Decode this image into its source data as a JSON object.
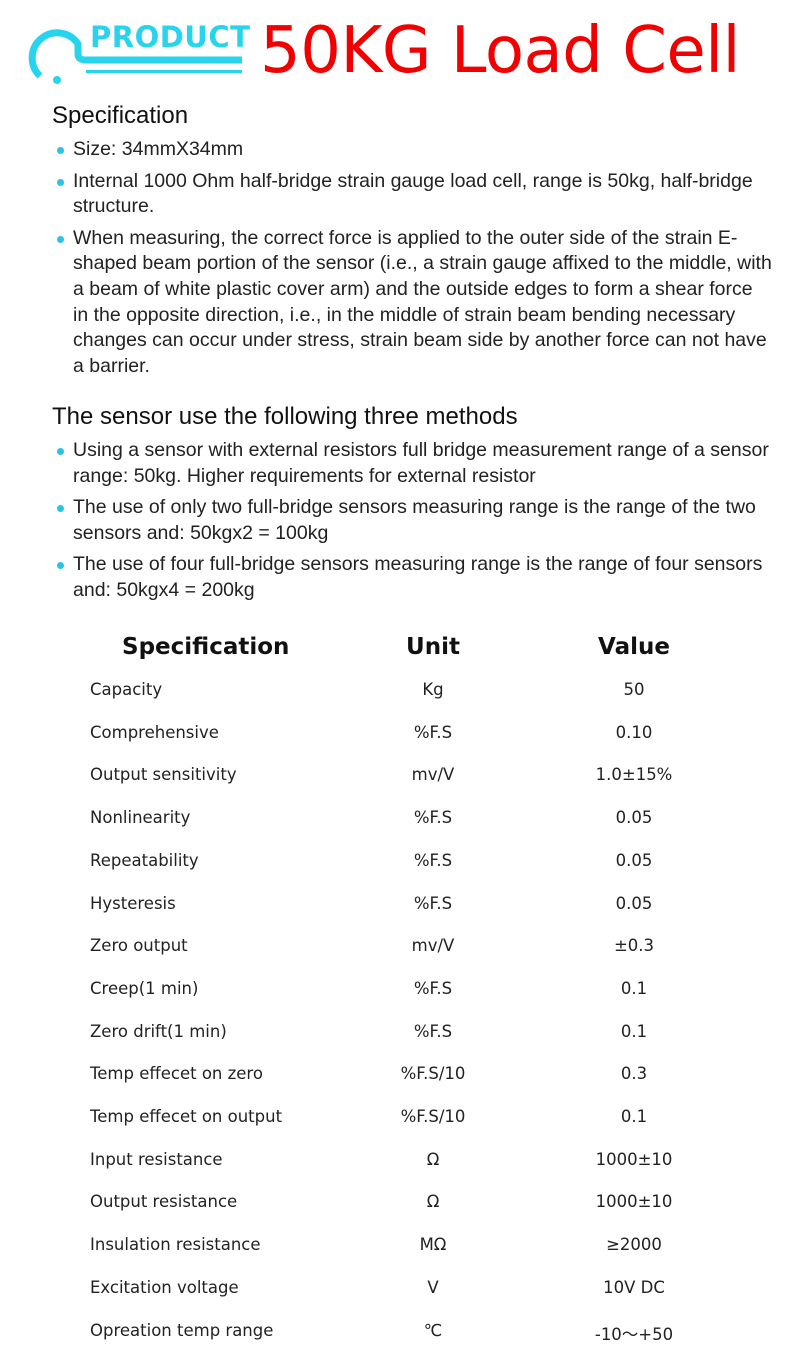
{
  "header": {
    "logo_text": "PRODUCT",
    "title": "50KG Load Cell",
    "brand_color": "#27d4ee",
    "title_color": "#f00000"
  },
  "section1": {
    "heading": "Specification",
    "bullets": [
      "Size: 34mmX34mm",
      "Internal 1000 Ohm half-bridge strain gauge load cell, range is 50kg, half-bridge structure.",
      "When measuring, the correct force is applied to the outer side of the strain E-shaped beam portion of the sensor (i.e., a strain gauge affixed to the middle, with a beam of white plastic cover arm) and the outside edges to form a shear force in the opposite direction, i.e., in the middle of strain beam bending necessary changes can occur under stress, strain beam side by another force can not have a barrier."
    ]
  },
  "section2": {
    "heading": "The sensor use the following three methods",
    "bullets": [
      "Using a sensor with external resistors full bridge measurement range of a sensor range: 50kg. Higher requirements for external resistor",
      "The use of only two full-bridge sensors measuring range is the range of the two sensors and: 50kgx2 = 100kg",
      "The use of four full-bridge sensors measuring range is the range of four sensors and: 50kgx4 = 200kg"
    ]
  },
  "table": {
    "headers": [
      "Specification",
      "Unit",
      "Value"
    ],
    "rows": [
      [
        "Capacity",
        "Kg",
        "50"
      ],
      [
        "Comprehensive",
        "%F.S",
        "0.10"
      ],
      [
        "Output sensitivity",
        "mv/V",
        "1.0±15%"
      ],
      [
        "Nonlinearity",
        "%F.S",
        "0.05"
      ],
      [
        "Repeatability",
        "%F.S",
        "0.05"
      ],
      [
        "Hysteresis",
        "%F.S",
        "0.05"
      ],
      [
        "Zero output",
        "mv/V",
        "±0.3"
      ],
      [
        "Creep(1 min)",
        "%F.S",
        "0.1"
      ],
      [
        "Zero drift(1 min)",
        "%F.S",
        "0.1"
      ],
      [
        "Temp effecet on zero",
        "%F.S/10",
        "0.3"
      ],
      [
        "Temp effecet on output",
        "%F.S/10",
        "0.1"
      ],
      [
        "Input resistance",
        "Ω",
        "1000±10"
      ],
      [
        "Output resistance",
        "Ω",
        "1000±10"
      ],
      [
        "Insulation resistance",
        "MΩ",
        "≥2000"
      ],
      [
        "Excitation voltage",
        "V",
        "10V DC"
      ],
      [
        "Opreation temp range",
        "℃",
        "-10～+50"
      ]
    ]
  }
}
